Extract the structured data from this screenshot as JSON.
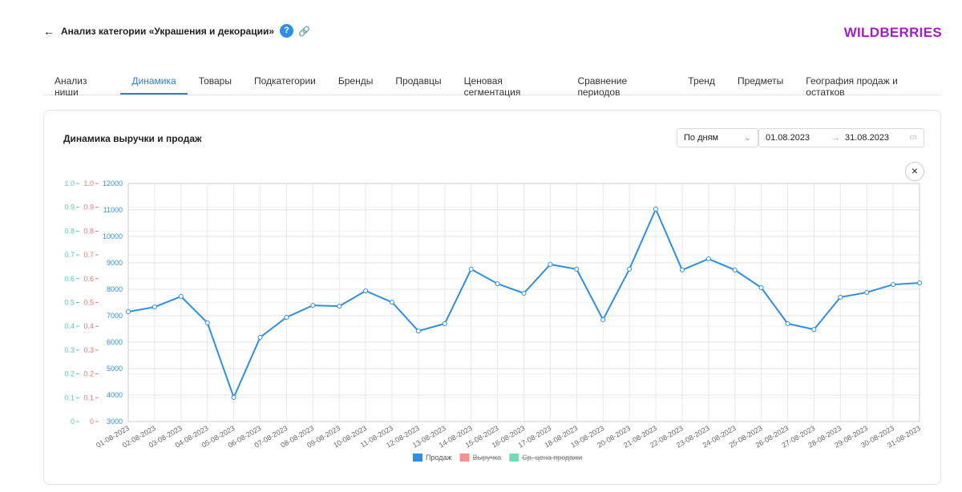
{
  "header": {
    "title": "Анализ категории «Украшения и декорации»",
    "logo": "WILDBERRIES"
  },
  "tabs": [
    "Анализ ниши",
    "Динамика",
    "Товары",
    "Подкатегории",
    "Бренды",
    "Продавцы",
    "Ценовая сегментация",
    "Сравнение периодов",
    "Тренд",
    "Предметы",
    "География продаж и остатков"
  ],
  "active_tab": 1,
  "card": {
    "title": "Динамика выручки и продаж",
    "period": "По дням",
    "date_from": "01.08.2023",
    "date_to": "31.08.2023"
  },
  "chart_data": {
    "type": "line",
    "categories": [
      "01-08-2023",
      "02-08-2023",
      "03-08-2023",
      "04-08-2023",
      "05-08-2023",
      "06-08-2023",
      "07-08-2023",
      "08-08-2023",
      "09-08-2023",
      "10-08-2023",
      "11-08-2023",
      "12-08-2023",
      "13-08-2023",
      "14-08-2023",
      "15-08-2023",
      "16-08-2023",
      "17-08-2023",
      "18-08-2023",
      "19-08-2023",
      "20-08-2023",
      "21-08-2023",
      "22-08-2023",
      "23-08-2023",
      "24-08-2023",
      "25-08-2023",
      "26-08-2023",
      "27-08-2023",
      "28-08-2023",
      "29-08-2023",
      "30-08-2023",
      "31-08-2023"
    ],
    "series": [
      {
        "name": "Продаж",
        "color": "#2e8fe3",
        "visible": true,
        "values": [
          7150,
          7330,
          7730,
          6730,
          3910,
          6180,
          6940,
          7390,
          7360,
          7940,
          7510,
          6420,
          6700,
          8760,
          8210,
          7850,
          8940,
          8760,
          6850,
          8760,
          11030,
          8730,
          9150,
          8730,
          8060,
          6700,
          6480,
          7700,
          7880,
          8180,
          8240
        ]
      },
      {
        "name": "Выручка",
        "color": "#f07575",
        "visible": false,
        "axis": "y2"
      },
      {
        "name": "Ср. цена продажи",
        "color": "#4fd1a5",
        "visible": false,
        "axis": "y3"
      }
    ],
    "ylim": [
      3000,
      12000
    ],
    "yticks": [
      3000,
      4000,
      5000,
      6000,
      7000,
      8000,
      9000,
      10000,
      11000,
      12000
    ],
    "y2lim": [
      0,
      1
    ],
    "y2ticks": [
      0,
      0.1,
      0.2,
      0.3,
      0.4,
      0.5,
      0.6,
      0.7,
      0.8,
      0.9,
      {
        "value": 1,
        "label": "1.0"
      }
    ],
    "y3lim": [
      0,
      1
    ],
    "y3ticks": [
      0,
      0.1,
      0.2,
      0.3,
      0.4,
      0.5,
      0.6,
      0.7,
      0.8,
      0.9,
      {
        "value": 1,
        "label": "1.0"
      }
    ],
    "grid": true
  }
}
